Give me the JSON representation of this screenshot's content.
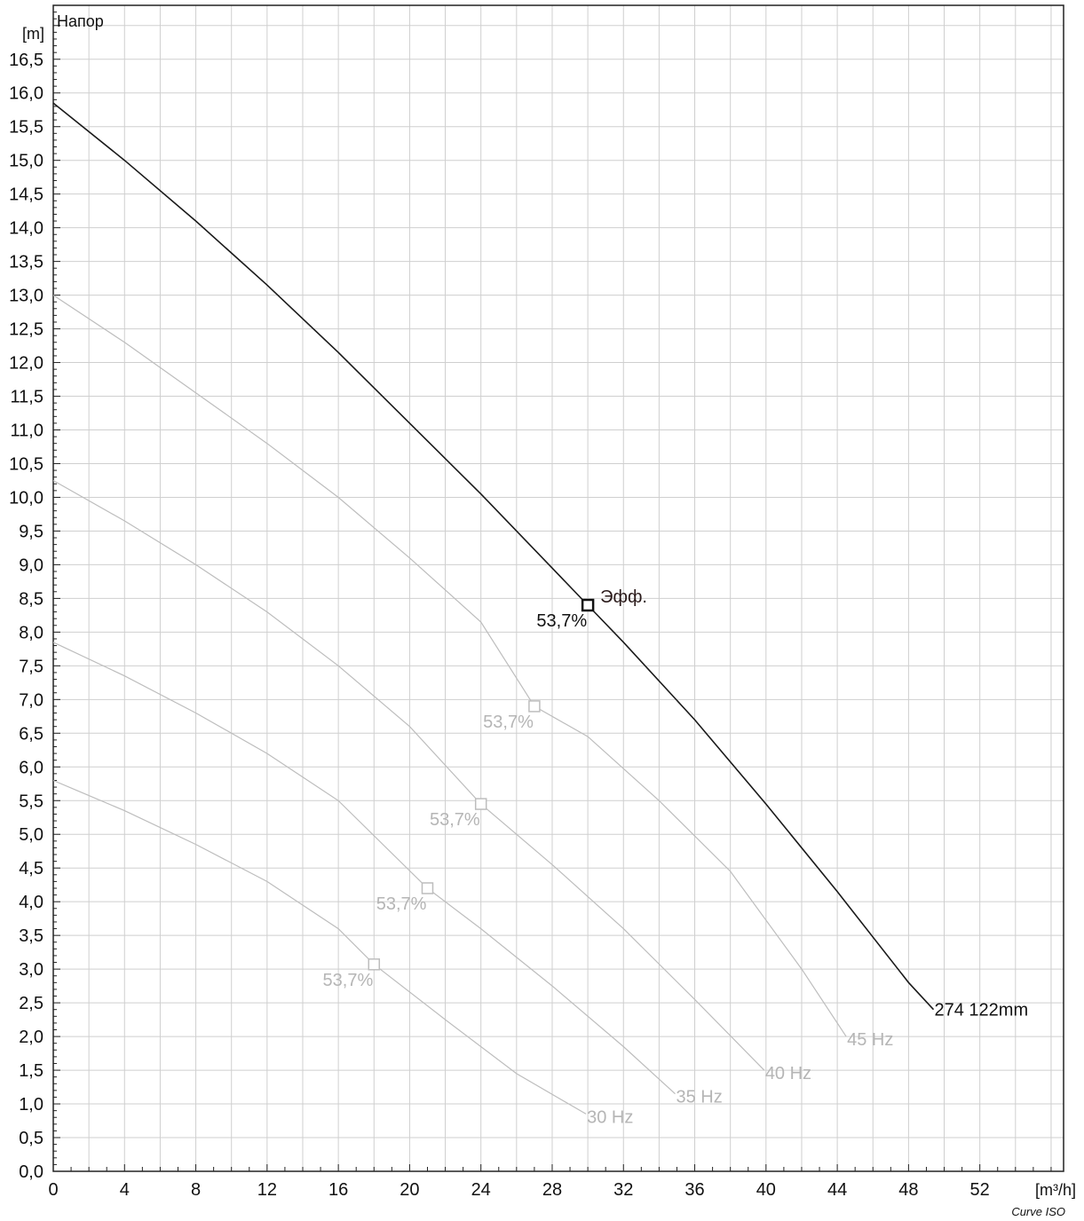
{
  "chart_data": {
    "type": "line",
    "title": "Напор",
    "y_unit": "[m]",
    "x_unit": "[m³/h]",
    "footer": "Curve ISO",
    "xlim": [
      0,
      56.7
    ],
    "ylim": [
      0,
      17.3
    ],
    "x_ticks": [
      0,
      4,
      8,
      12,
      16,
      20,
      24,
      28,
      32,
      36,
      40,
      44,
      48,
      52
    ],
    "x_tick_labels": [
      "0",
      "4",
      "8",
      "12",
      "16",
      "20",
      "24",
      "28",
      "32",
      "36",
      "40",
      "44",
      "48",
      "52"
    ],
    "y_ticks": [
      0,
      0.5,
      1,
      1.5,
      2,
      2.5,
      3,
      3.5,
      4,
      4.5,
      5,
      5.5,
      6,
      6.5,
      7,
      7.5,
      8,
      8.5,
      9,
      9.5,
      10,
      10.5,
      11,
      11.5,
      12,
      12.5,
      13,
      13.5,
      14,
      14.5,
      15,
      15.5,
      16,
      16.5
    ],
    "y_tick_labels": [
      "0,0",
      "0,5",
      "1,0",
      "1,5",
      "2,0",
      "2,5",
      "3,0",
      "3,5",
      "4,0",
      "4,5",
      "5,0",
      "5,5",
      "6,0",
      "6,5",
      "7,0",
      "7,5",
      "8,0",
      "8,5",
      "9,0",
      "9,5",
      "10,0",
      "10,5",
      "11,0",
      "11,5",
      "12,0",
      "12,5",
      "13,0",
      "13,5",
      "14,0",
      "14,5",
      "15,0",
      "15,5",
      "16,0",
      "16,5"
    ],
    "grid": true,
    "series": [
      {
        "name": "274 122mm",
        "color": "#1a1a1a",
        "x": [
          0,
          4,
          8,
          12,
          16,
          20,
          24,
          28,
          30,
          32,
          36,
          40,
          44,
          48,
          49.4
        ],
        "y": [
          15.85,
          15.0,
          14.1,
          13.15,
          12.15,
          11.1,
          10.05,
          8.95,
          8.4,
          7.85,
          6.7,
          5.45,
          4.15,
          2.8,
          2.4
        ],
        "bep": {
          "x": 30,
          "y": 8.4,
          "label": "53,7%"
        }
      },
      {
        "name": "45 Hz",
        "color": "#bdbdbd",
        "x": [
          0,
          4,
          8,
          12,
          16,
          20,
          24,
          27,
          30,
          34,
          38,
          42,
          44.5
        ],
        "y": [
          13.0,
          12.3,
          11.55,
          10.8,
          10.0,
          9.1,
          8.15,
          6.9,
          6.45,
          5.5,
          4.45,
          3.0,
          2.0
        ],
        "bep": {
          "x": 27,
          "y": 6.9,
          "label": "53,7%"
        }
      },
      {
        "name": "40 Hz",
        "color": "#bdbdbd",
        "x": [
          0,
          4,
          8,
          12,
          16,
          20,
          24,
          28,
          32,
          36,
          39.9
        ],
        "y": [
          10.25,
          9.65,
          9.0,
          8.3,
          7.5,
          6.6,
          5.45,
          4.55,
          3.6,
          2.55,
          1.5
        ],
        "bep": {
          "x": 24,
          "y": 5.45,
          "label": "53,7%"
        }
      },
      {
        "name": "35 Hz",
        "color": "#bdbdbd",
        "x": [
          0,
          4,
          8,
          12,
          16,
          21,
          24,
          28,
          32,
          34.9
        ],
        "y": [
          7.85,
          7.35,
          6.8,
          6.2,
          5.5,
          4.2,
          3.6,
          2.75,
          1.85,
          1.15
        ],
        "bep": {
          "x": 21,
          "y": 4.2,
          "label": "53,7%"
        }
      },
      {
        "name": "30 Hz",
        "color": "#bdbdbd",
        "x": [
          0,
          4,
          8,
          12,
          16,
          18,
          22,
          26,
          29.9
        ],
        "y": [
          5.8,
          5.35,
          4.85,
          4.3,
          3.6,
          3.07,
          2.25,
          1.45,
          0.85
        ],
        "bep": {
          "x": 18,
          "y": 3.07,
          "label": "53,7%"
        }
      }
    ],
    "annotations": [
      {
        "text": "Эфф.",
        "x": 30,
        "y": 8.4
      }
    ]
  }
}
